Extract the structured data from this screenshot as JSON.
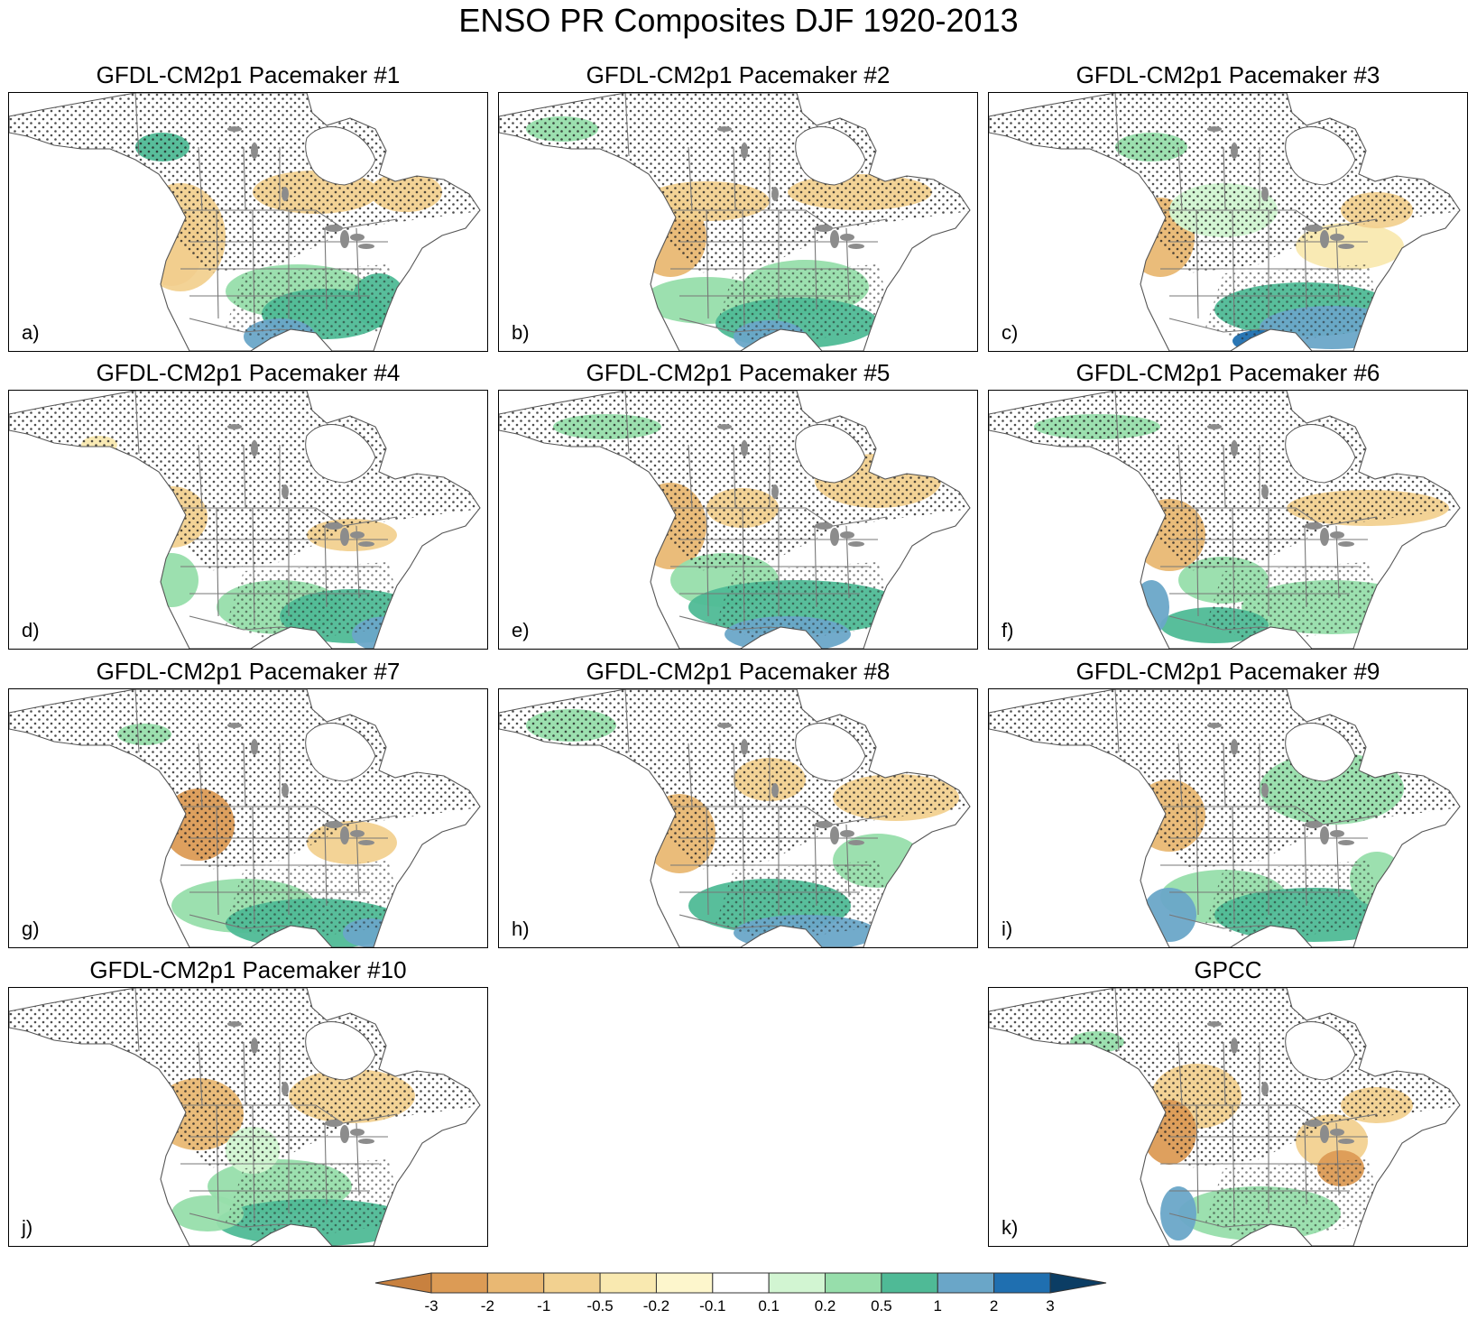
{
  "figure": {
    "title": "ENSO PR Composites DJF 1920-2013"
  },
  "panels": [
    {
      "title": "GFDL-CM2p1 Pacemaker #1",
      "label": "a)"
    },
    {
      "title": "GFDL-CM2p1 Pacemaker #2",
      "label": "b)"
    },
    {
      "title": "GFDL-CM2p1 Pacemaker #3",
      "label": "c)"
    },
    {
      "title": "GFDL-CM2p1 Pacemaker #4",
      "label": "d)"
    },
    {
      "title": "GFDL-CM2p1 Pacemaker #5",
      "label": "e)"
    },
    {
      "title": "GFDL-CM2p1 Pacemaker #6",
      "label": "f)"
    },
    {
      "title": "GFDL-CM2p1 Pacemaker #7",
      "label": "g)"
    },
    {
      "title": "GFDL-CM2p1 Pacemaker #8",
      "label": "h)"
    },
    {
      "title": "GFDL-CM2p1 Pacemaker #9",
      "label": "i)"
    },
    {
      "title": "GFDL-CM2p1 Pacemaker #10",
      "label": "j)"
    },
    {
      "title": "GPCC",
      "label": "k)"
    }
  ],
  "colorbar": {
    "levels": [
      "-3",
      "-2",
      "-1",
      "-0.5",
      "-0.2",
      "-0.1",
      "0.1",
      "0.2",
      "0.5",
      "1",
      "2",
      "3"
    ],
    "colors": [
      "#c8813f",
      "#dc9b55",
      "#e9b873",
      "#f2d190",
      "#f9e9b0",
      "#fdf6cc",
      "#ffffff",
      "#d2f5d2",
      "#97deab",
      "#4fba96",
      "#6aa6c8",
      "#1f6fb0",
      "#0b3d64"
    ]
  },
  "style": {
    "land_outline": "#555555",
    "state_lines": "#777777",
    "lakes": "#8c8c8c",
    "stipple": "#222222"
  }
}
